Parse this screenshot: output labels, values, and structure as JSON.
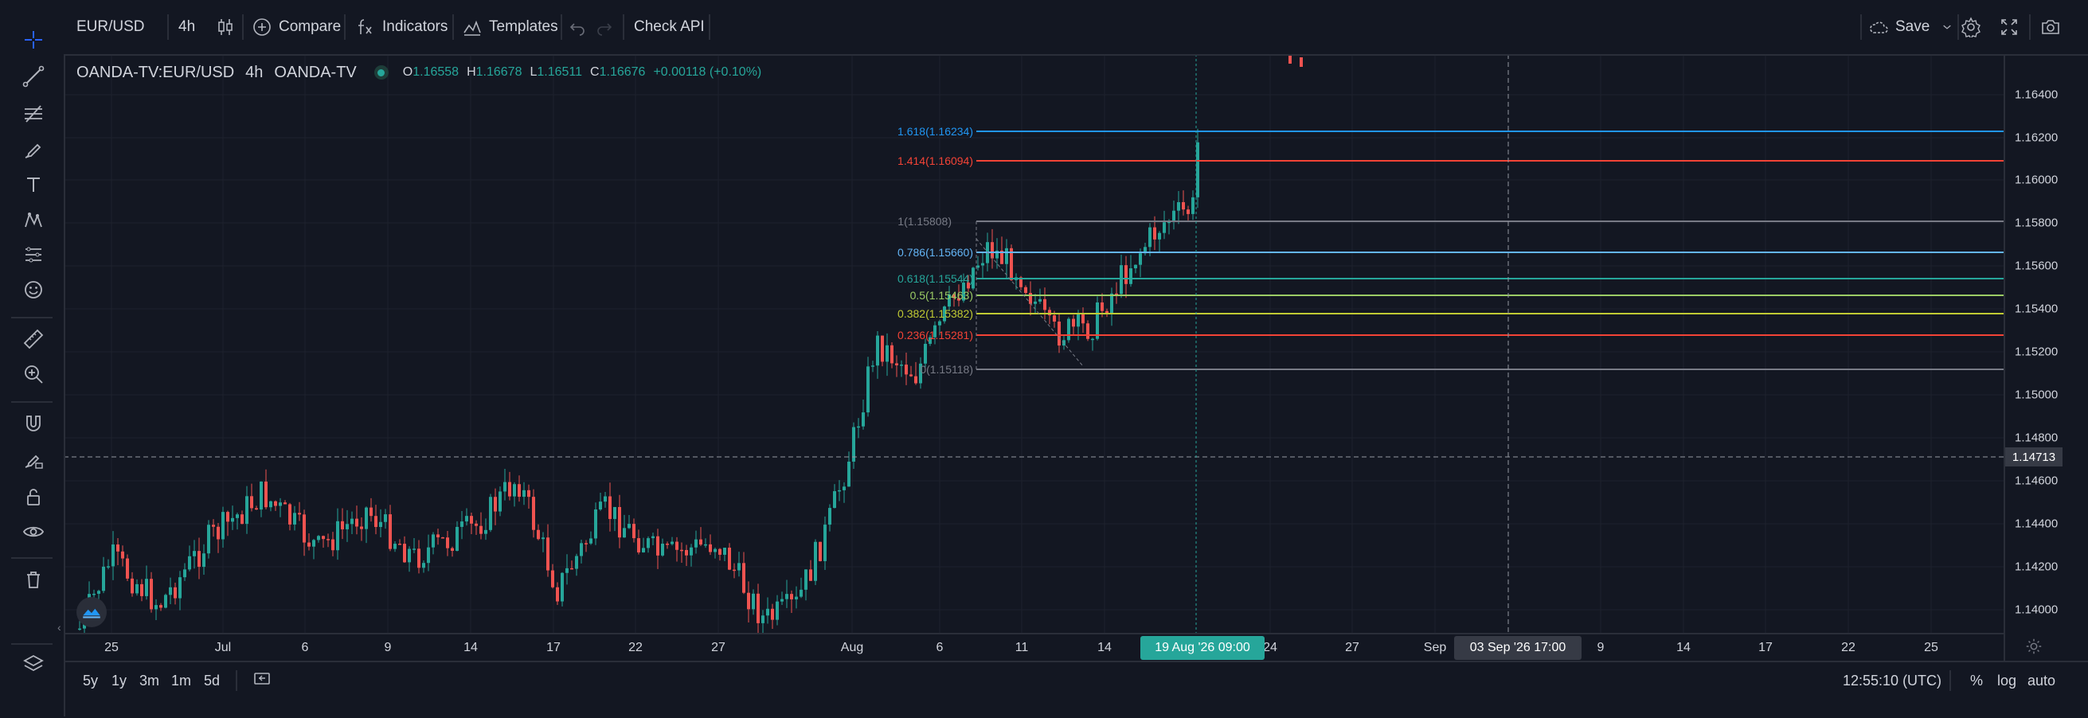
{
  "toolbar": {
    "symbol": "EUR/USD",
    "interval": "4h",
    "compare_label": "Compare",
    "indicators_label": "Indicators",
    "templates_label": "Templates",
    "check_api_label": "Check API",
    "save_label": "Save"
  },
  "legend": {
    "symbol": "OANDA-TV:EUR/USD",
    "interval": "4h",
    "source": "OANDA-TV",
    "o_key": "O",
    "o_val": "1.16558",
    "h_key": "H",
    "h_val": "1.16678",
    "l_key": "L",
    "l_val": "1.16511",
    "c_key": "C",
    "c_val": "1.16676",
    "change": "+0.00118 (+0.10%)"
  },
  "price_axis": {
    "ticks": [
      "1.16400",
      "1.16200",
      "1.16000",
      "1.15800",
      "1.15600",
      "1.15400",
      "1.15200",
      "1.15000",
      "1.14800",
      "1.14600",
      "1.14400",
      "1.14200",
      "1.14000"
    ],
    "crosshair_price": "1.14713"
  },
  "time_axis": {
    "ticks": [
      "25",
      "Jul",
      "6",
      "9",
      "14",
      "17",
      "22",
      "27",
      "Aug",
      "6",
      "11",
      "14",
      "24",
      "27",
      "Sep",
      "9",
      "14",
      "17",
      "22",
      "25"
    ],
    "highlight_label": "19 Aug '26   09:00",
    "crosshair_label": "03 Sep '26   17:00"
  },
  "fib_levels": [
    {
      "label": "1.618(1.16234)",
      "color": "#2196f3"
    },
    {
      "label": "1.414(1.16094)",
      "color": "#f44336"
    },
    {
      "label": "1(1.15808)",
      "color": "#787b86"
    },
    {
      "label": "0.786(1.15660)",
      "color": "#64b5f6"
    },
    {
      "label": "0.618(1.15544)",
      "color": "#26a69a"
    },
    {
      "label": "0.5(1.15463)",
      "color": "#9ccc65"
    },
    {
      "label": "0.382(1.15382)",
      "color": "#c0ca33"
    },
    {
      "label": "0.236(1.15281)",
      "color": "#f44336"
    },
    {
      "label": "0(1.15118)",
      "color": "#787b86"
    }
  ],
  "bottom_bar": {
    "ranges": [
      "5y",
      "1y",
      "3m",
      "1m",
      "5d"
    ],
    "clock": "12:55:10 (UTC)",
    "percent": "%",
    "log": "log",
    "auto": "auto"
  },
  "colors": {
    "up": "#26a69a",
    "down": "#ef5350",
    "background": "#131722",
    "grid": "#1e222d",
    "accent": "#26a69a"
  },
  "icons": [
    "crosshair-icon",
    "trendline-icon",
    "fib-tool-icon",
    "brush-icon",
    "text-icon",
    "pattern-icon",
    "forecast-icon",
    "emoji-icon",
    "ruler-icon",
    "zoom-icon",
    "magnet-icon",
    "lock-drawing-icon",
    "unlock-icon",
    "eye-icon",
    "trash-icon",
    "layers-icon",
    "candles-icon",
    "plus-circle-icon",
    "fx-icon",
    "templates-icon",
    "undo-icon",
    "redo-icon",
    "cloud-icon",
    "chevron-down-icon",
    "gear-icon",
    "fullscreen-icon",
    "camera-icon",
    "replay-icon",
    "settings-small-icon",
    "logo-icon"
  ]
}
